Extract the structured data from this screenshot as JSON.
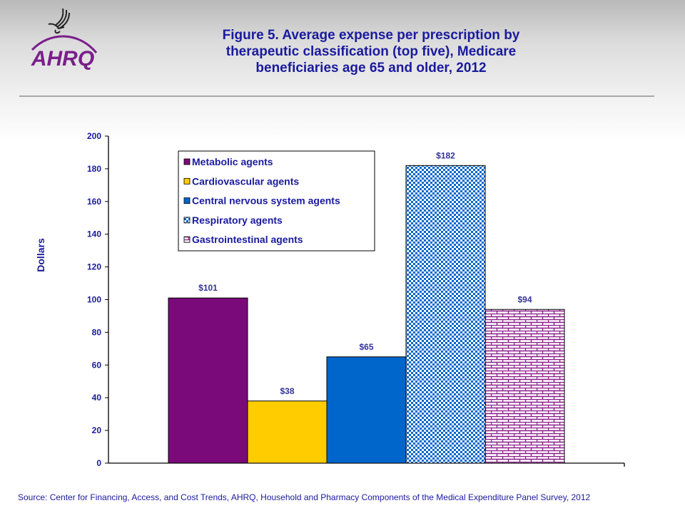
{
  "header": {
    "logo_text": "AHRQ",
    "title_lines": [
      "Figure 5. Average expense per prescription by",
      "therapeutic classification (top five), Medicare",
      "beneficiaries age 65 and older, 2012"
    ]
  },
  "chart_data": {
    "type": "bar",
    "title": "Figure 5. Average expense per prescription by therapeutic classification (top five), Medicare beneficiaries age 65 and older, 2012",
    "xlabel": "",
    "ylabel": "Dollars",
    "ylim": [
      0,
      200
    ],
    "yticks": [
      0,
      20,
      40,
      60,
      80,
      100,
      120,
      140,
      160,
      180,
      200
    ],
    "grid": false,
    "legend_position": "top-left",
    "categories": [
      "Metabolic agents",
      "Cardiovascular agents",
      "Central nervous system agents",
      "Respiratory agents",
      "Gastrointestinal agents"
    ],
    "values": [
      101,
      38,
      65,
      182,
      94
    ],
    "data_labels": [
      "$101",
      "$38",
      "$65",
      "$182",
      "$94"
    ],
    "colors": [
      "#7a0a7a",
      "#ffcc00",
      "#0066cc",
      "#0066cc",
      "#8b1a8b"
    ],
    "patterns": [
      "solid",
      "solid",
      "solid",
      "dots",
      "bricks"
    ]
  },
  "footer": {
    "source": "Source: Center for Financing, Access, and Cost Trends, AHRQ, Household and Pharmacy Components of the Medical Expenditure Panel Survey,  2012"
  }
}
